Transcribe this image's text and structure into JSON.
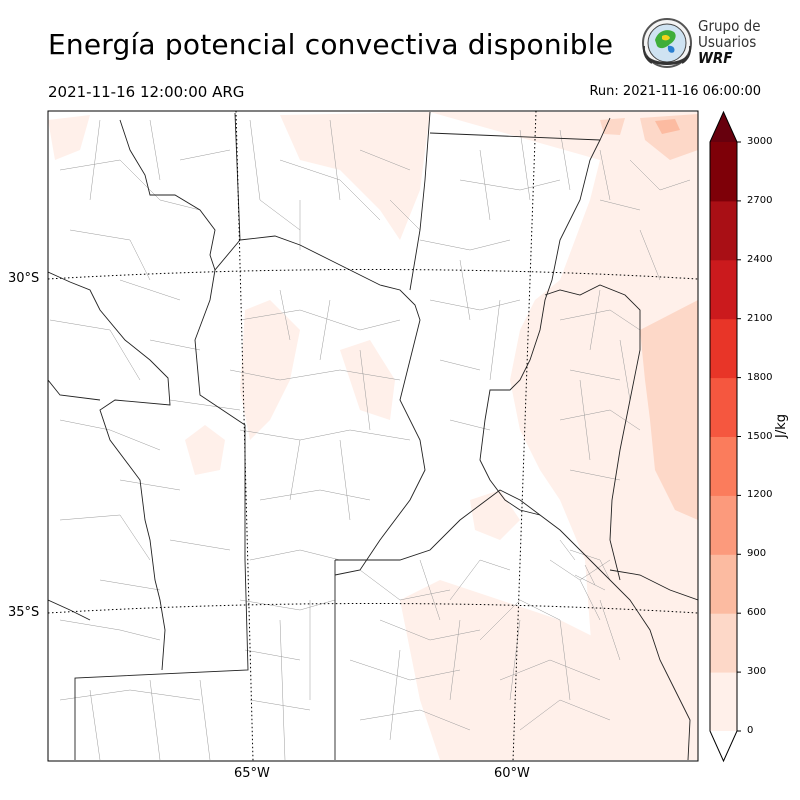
{
  "header": {
    "title": "Energía potencial convectiva disponible",
    "valid_time": "2021-11-16 12:00:00 ARG",
    "run_time": "Run: 2021-11-16 06:00:00"
  },
  "logo": {
    "line1": "Grupo de",
    "line2": "Usuarios",
    "line3": "WRF"
  },
  "map": {
    "lat_labels": [
      "30°S",
      "35°S"
    ],
    "lon_labels": [
      "65°W",
      "60°W"
    ],
    "field": "CAPE"
  },
  "colorbar": {
    "unit": "J/kg",
    "ticks": [
      "0",
      "300",
      "600",
      "900",
      "1200",
      "1500",
      "1800",
      "2100",
      "2400",
      "2700",
      "3000"
    ],
    "colors": [
      "#fff0ea",
      "#fdd8c8",
      "#fcbba1",
      "#fc9a7c",
      "#fb7c5c",
      "#f5573f",
      "#e83528",
      "#cb1a1d",
      "#a90f15",
      "#7e0008"
    ],
    "extend": "both"
  }
}
